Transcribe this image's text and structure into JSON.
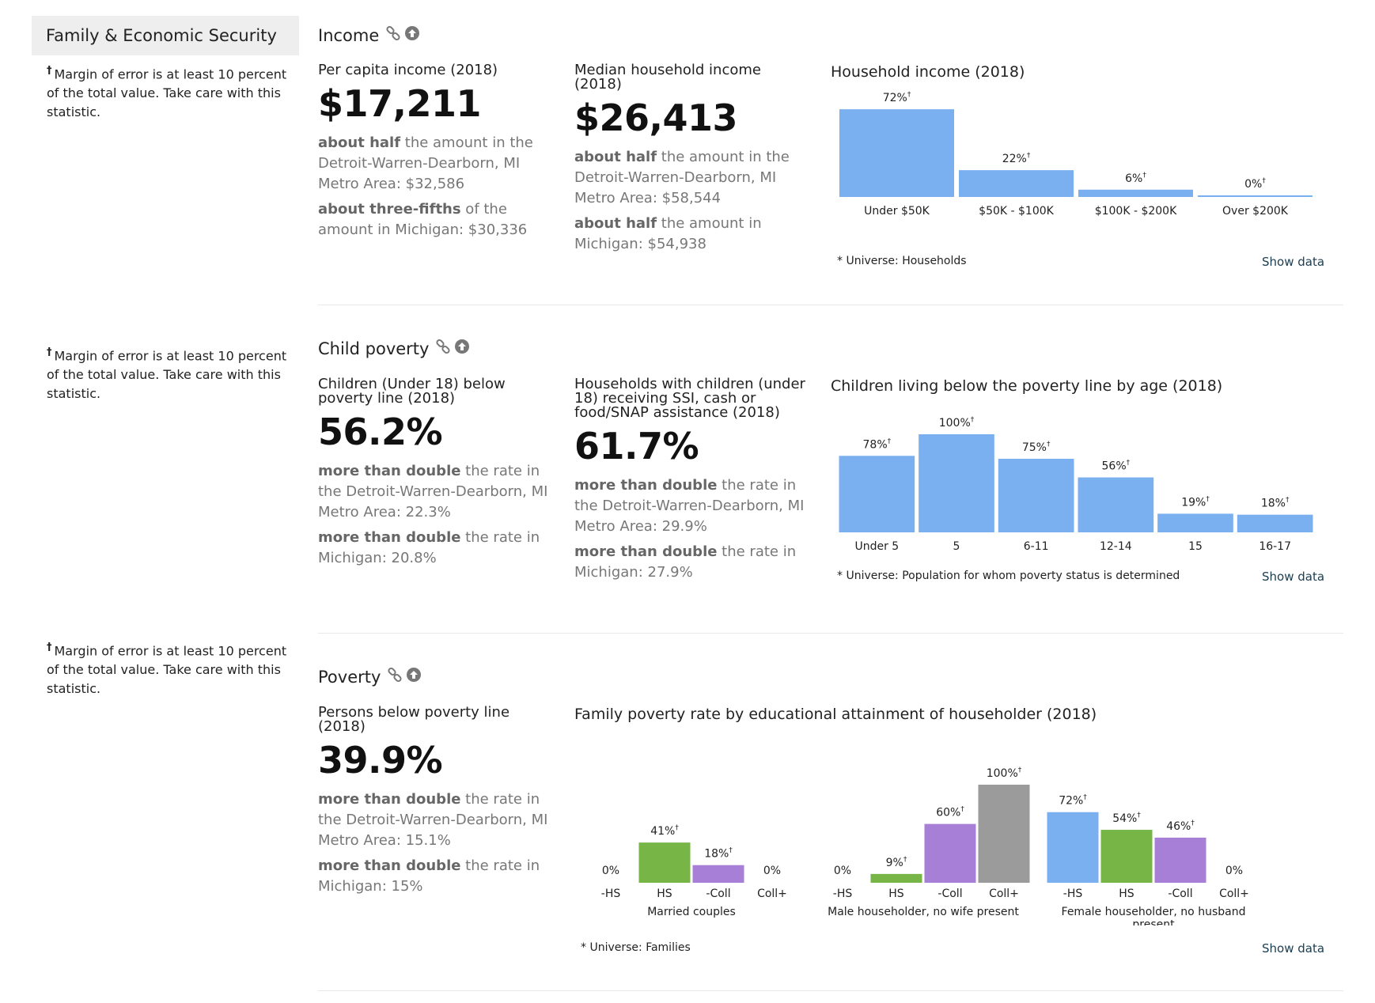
{
  "sidebar": {
    "title": "Family & Economic Security"
  },
  "footnote": {
    "mark": "†",
    "text": "Margin of error is at least 10 percent of the total value. Take care with this statistic."
  },
  "income": {
    "title": "Income",
    "per_capita": {
      "label": "Per capita income (2018)",
      "value": "$17,211",
      "cmp1_bold": "about half",
      "cmp1_text": " the amount in the Detroit-Warren-Dearborn, MI Metro Area: $32,586",
      "cmp2_bold": "about three-fifths",
      "cmp2_text": " of the amount in Michigan: $30,336"
    },
    "median": {
      "label": "Median household income (2018)",
      "value": "$26,413",
      "cmp1_bold": "about half",
      "cmp1_text": " the amount in the Detroit-Warren-Dearborn, MI Metro Area: $58,544",
      "cmp2_bold": "about half",
      "cmp2_text": " the amount in Michigan: $54,938"
    },
    "chart_title": "Household income (2018)",
    "universe": "* Universe: Households",
    "show_data": "Show data"
  },
  "child_poverty": {
    "title": "Child poverty",
    "children": {
      "label": "Children (Under 18) below poverty line (2018)",
      "value": "56.2%",
      "cmp1_bold": "more than double",
      "cmp1_text": " the rate in the Detroit-Warren-Dearborn, MI Metro Area: 22.3%",
      "cmp2_bold": "more than double",
      "cmp2_text": " the rate in Michigan: 20.8%"
    },
    "households": {
      "label": "Households with children (under 18) receiving SSI, cash or food/SNAP assistance (2018)",
      "value": "61.7%",
      "cmp1_bold": "more than double",
      "cmp1_text": " the rate in the Detroit-Warren-Dearborn, MI Metro Area: 29.9%",
      "cmp2_bold": "more than double",
      "cmp2_text": " the rate in Michigan: 27.9%"
    },
    "chart_title": "Children living below the poverty line by age (2018)",
    "universe": "* Universe: Population for whom poverty status is determined",
    "show_data": "Show data"
  },
  "poverty": {
    "title": "Poverty",
    "persons": {
      "label": "Persons below poverty line (2018)",
      "value": "39.9%",
      "cmp1_bold": "more than double",
      "cmp1_text": " the rate in the Detroit-Warren-Dearborn, MI Metro Area: 15.1%",
      "cmp2_bold": "more than double",
      "cmp2_text": " the rate in Michigan: 15%"
    },
    "chart_title": "Family poverty rate by educational attainment of householder (2018)",
    "universe": "* Universe: Families",
    "show_data": "Show data"
  },
  "colors": {
    "blue": "#7aaff0",
    "green": "#77b646",
    "purple": "#a77fd6",
    "gray": "#9b9b9b"
  },
  "icons": [
    "link-icon",
    "arrow-up-circle-icon"
  ],
  "chart_data": [
    {
      "type": "bar",
      "title": "Household income (2018)",
      "categories": [
        "Under $50K",
        "$50K - $100K",
        "$100K - $200K",
        "Over $200K"
      ],
      "values": [
        72,
        22,
        6,
        0
      ],
      "labels": [
        "72%",
        "22%",
        "6%",
        "0%"
      ],
      "moe_flag": [
        true,
        true,
        true,
        true
      ],
      "ylim": [
        0,
        100
      ]
    },
    {
      "type": "bar",
      "title": "Children living below the poverty line by age (2018)",
      "categories": [
        "Under 5",
        "5",
        "6-11",
        "12-14",
        "15",
        "16-17"
      ],
      "values": [
        78,
        100,
        75,
        56,
        19,
        18
      ],
      "labels": [
        "78%",
        "100%",
        "75%",
        "56%",
        "19%",
        "18%"
      ],
      "moe_flag": [
        true,
        true,
        true,
        true,
        true,
        true
      ],
      "ylim": [
        0,
        100
      ]
    },
    {
      "type": "bar",
      "title": "Family poverty rate by educational attainment of householder (2018)",
      "categories": [
        "-HS",
        "HS",
        "-Coll",
        "Coll+"
      ],
      "groups": [
        {
          "name": "Married couples",
          "values": [
            0,
            41,
            18,
            0
          ],
          "labels": [
            "0%",
            "41%",
            "18%",
            "0%"
          ],
          "moe_flag": [
            false,
            true,
            true,
            false
          ]
        },
        {
          "name": "Male householder, no wife present",
          "values": [
            0,
            9,
            60,
            100
          ],
          "labels": [
            "0%",
            "9%",
            "60%",
            "100%"
          ],
          "moe_flag": [
            false,
            true,
            true,
            true
          ]
        },
        {
          "name": "Female householder, no husband present",
          "values": [
            72,
            54,
            46,
            0
          ],
          "labels": [
            "72%",
            "54%",
            "46%",
            "0%"
          ],
          "moe_flag": [
            true,
            true,
            true,
            false
          ]
        }
      ],
      "ylim": [
        0,
        100
      ]
    }
  ]
}
